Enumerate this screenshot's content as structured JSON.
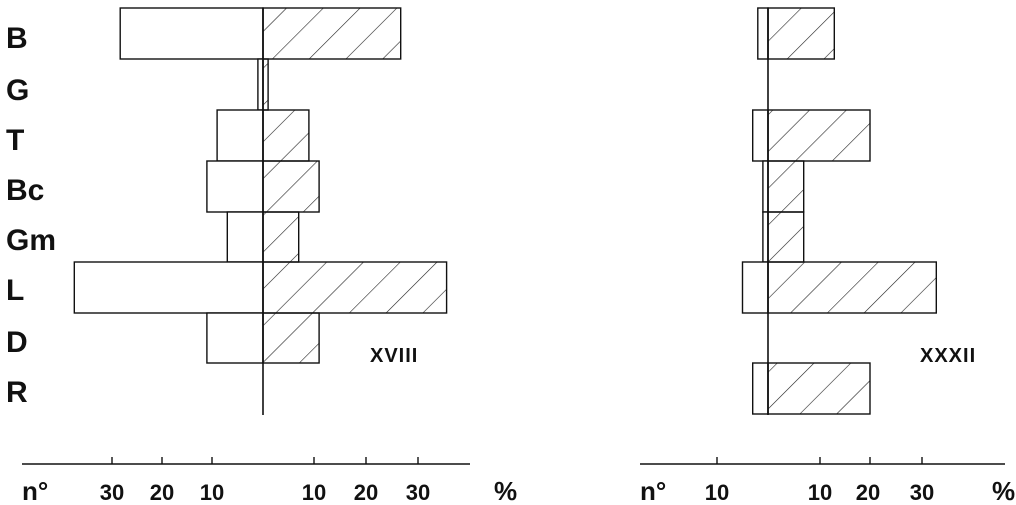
{
  "chart_data": [
    {
      "type": "bar",
      "orientation": "horizontal",
      "style": "diverging histogram: left side open, right side hatched",
      "title": "XVIII",
      "categories": [
        "B",
        "G",
        "T",
        "Bc",
        "Gm",
        "L",
        "D",
        "R"
      ],
      "series": [
        {
          "side": "left",
          "values": [
            28,
            1,
            9,
            11,
            7,
            37,
            11,
            0
          ]
        },
        {
          "side": "right",
          "values": [
            27,
            1,
            9,
            11,
            7,
            36,
            11,
            0
          ]
        }
      ],
      "xlabel_left": "n°",
      "xlabel_right": "%",
      "xticks_left": [
        "30",
        "20",
        "10"
      ],
      "xticks_right": [
        "10",
        "20",
        "30"
      ],
      "grid": false
    },
    {
      "type": "bar",
      "orientation": "horizontal",
      "style": "diverging histogram: left side open, right side hatched",
      "title": "XXXII",
      "categories": [
        "B",
        "G",
        "T",
        "Bc",
        "Gm",
        "L",
        "D",
        "R"
      ],
      "series": [
        {
          "side": "left",
          "values": [
            2,
            0,
            3,
            1,
            1,
            5,
            0,
            3
          ]
        },
        {
          "side": "right",
          "values": [
            13,
            0,
            20,
            7,
            7,
            33,
            0,
            20
          ]
        }
      ],
      "xlabel_left": "n°",
      "xlabel_right": "%",
      "xticks_left": [
        "10"
      ],
      "xticks_right": [
        "10",
        "20",
        "30"
      ],
      "grid": false
    }
  ]
}
